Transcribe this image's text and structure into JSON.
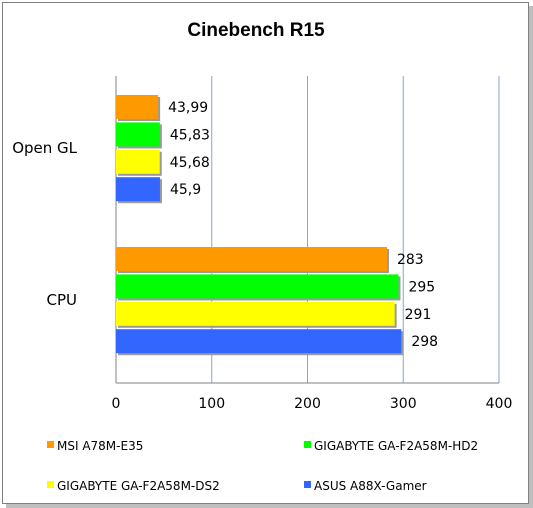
{
  "chart_data": {
    "type": "bar",
    "orientation": "horizontal",
    "title": "Cinebench R15",
    "categories": [
      "Open GL",
      "CPU"
    ],
    "series": [
      {
        "name": "MSI A78M-E35",
        "color": "#FF9900",
        "values": [
          43.99,
          283
        ],
        "labels": [
          "43,99",
          "283"
        ]
      },
      {
        "name": "GIGABYTE GA-F2A58M-HD2",
        "color": "#00FF00",
        "values": [
          45.83,
          295
        ],
        "labels": [
          "45,83",
          "295"
        ]
      },
      {
        "name": "GIGABYTE GA-F2A58M-DS2",
        "color": "#FFFF00",
        "values": [
          45.68,
          291
        ],
        "labels": [
          "45,68",
          "291"
        ]
      },
      {
        "name": "ASUS A88X-Gamer",
        "color": "#3366FF",
        "values": [
          45.9,
          298
        ],
        "labels": [
          "45,9",
          "298"
        ]
      }
    ],
    "xlim": [
      0,
      400
    ],
    "xticks": [
      "0",
      "100",
      "200",
      "300",
      "400"
    ],
    "grid": "vertical",
    "legend": "bottom"
  }
}
